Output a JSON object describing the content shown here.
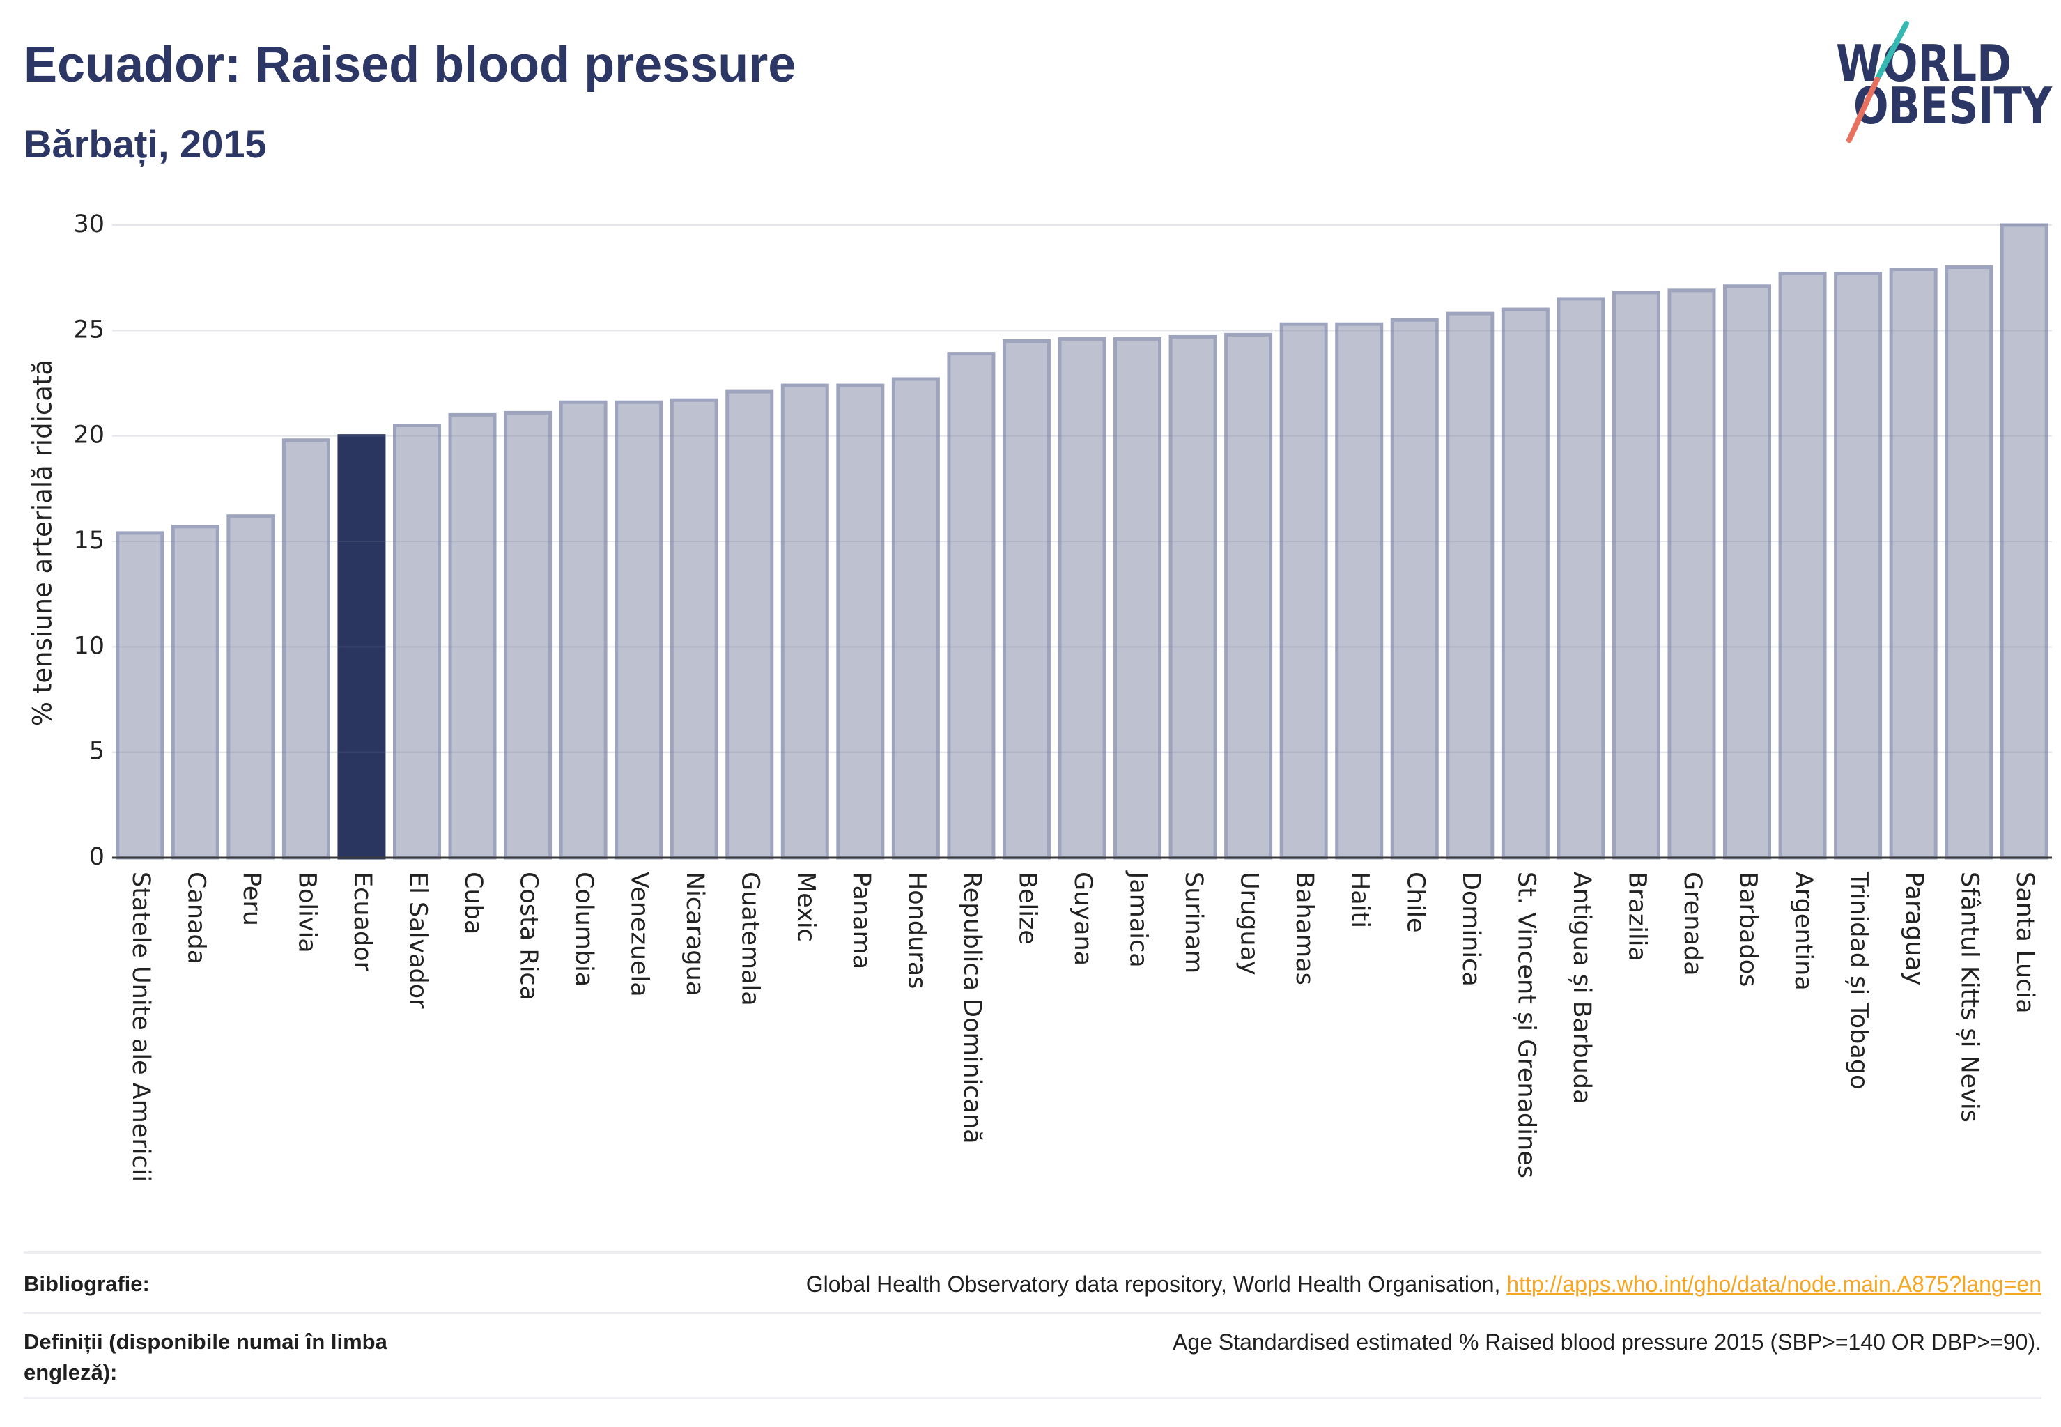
{
  "chart_data": {
    "type": "bar",
    "title": "Ecuador: Raised blood pressure",
    "subtitle": "Bărbați, 2015",
    "xlabel": "",
    "ylabel": "% tensiune arterială ridicată",
    "ylim": [
      0,
      30
    ],
    "yticks": [
      0,
      5,
      10,
      15,
      20,
      25,
      30
    ],
    "grid": true,
    "legend": "none",
    "highlight": "Ecuador",
    "categories": [
      "Statele Unite ale Americii",
      "Canada",
      "Peru",
      "Bolivia",
      "Ecuador",
      "El Salvador",
      "Cuba",
      "Costa Rica",
      "Columbia",
      "Venezuela",
      "Nicaragua",
      "Guatemala",
      "Mexic",
      "Panama",
      "Honduras",
      "Republica Dominicană",
      "Belize",
      "Guyana",
      "Jamaica",
      "Surinam",
      "Uruguay",
      "Bahamas",
      "Haiti",
      "Chile",
      "Dominica",
      "St. Vincent și Grenadines",
      "Antigua și Barbuda",
      "Brazilia",
      "Grenada",
      "Barbados",
      "Argentina",
      "Trinidad și Tobago",
      "Paraguay",
      "Sfântul Kitts și Nevis",
      "Santa Lucia"
    ],
    "values": [
      15.4,
      15.7,
      16.2,
      19.8,
      20.0,
      20.5,
      21.0,
      21.1,
      21.6,
      21.6,
      21.7,
      22.1,
      22.4,
      22.4,
      22.7,
      23.9,
      24.5,
      24.6,
      24.6,
      24.7,
      24.8,
      25.3,
      25.3,
      25.5,
      25.8,
      26.0,
      26.5,
      26.8,
      26.9,
      27.1,
      27.7,
      27.7,
      27.9,
      28.0,
      30.0
    ],
    "colors": {
      "bar": "#bec2d0",
      "bar_border": "#9ea4bd",
      "highlight": "#2a3560",
      "axis": "#3a3a3a"
    }
  },
  "logo": {
    "line1": "WORLD",
    "line2": "OBESITY",
    "colors": {
      "text": "#2d3765",
      "slash_top": "#35b8b1",
      "slash_bottom": "#e8705f"
    }
  },
  "footer": {
    "sources_label": "Bibliografie:",
    "sources_text": "Global Health Observatory data repository, World Health Organisation, ",
    "sources_link": "http://apps.who.int/gho/data/node.main.A875?lang=en",
    "definitions_label": "Definiții (disponibile numai în limba engleză):",
    "definitions_text": "Age Standardised estimated % Raised blood pressure 2015 (SBP>=140 OR DBP>=90).",
    "link_color": "#f5a623"
  }
}
